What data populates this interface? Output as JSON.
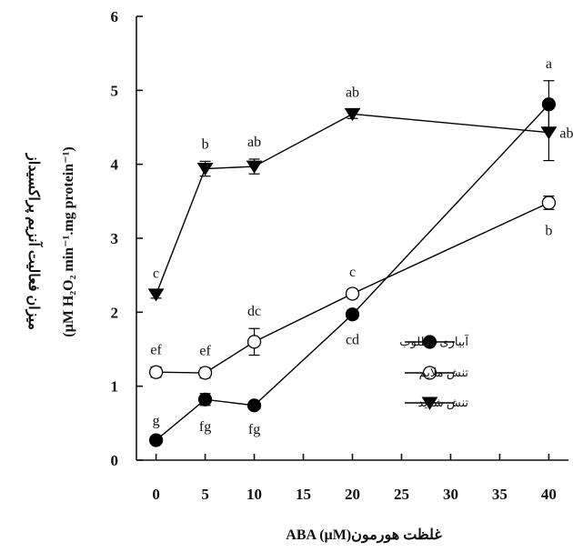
{
  "chart_data": {
    "type": "line",
    "title": "",
    "xlabel": "غلظت  هورمونABA (µM)",
    "ylabel_line1": "میزان فعالیت آنزیم پراکسیداز",
    "ylabel_line2": "(µM H₂O₂ min⁻¹.mg protein⁻¹)",
    "xlim": [
      -2,
      42
    ],
    "ylim": [
      0,
      6
    ],
    "x_ticks": [
      0,
      5,
      10,
      15,
      20,
      25,
      30,
      35,
      40
    ],
    "y_ticks": [
      0,
      1,
      2,
      3,
      4,
      5,
      6
    ],
    "legend_position": "center-right",
    "series": [
      {
        "name": "آبیاری مطلوب",
        "marker": "filled-circle",
        "points": [
          {
            "x": 0,
            "y": 0.27,
            "err": 0.03,
            "letter": "g",
            "letter_pos": "above"
          },
          {
            "x": 5,
            "y": 0.82,
            "err": 0.08,
            "letter": "fg",
            "letter_pos": "below"
          },
          {
            "x": 10,
            "y": 0.74,
            "err": 0.04,
            "letter": "fg",
            "letter_pos": "below"
          },
          {
            "x": 20,
            "y": 1.97,
            "err": 0.06,
            "letter": "cd",
            "letter_pos": "below"
          },
          {
            "x": 40,
            "y": 4.81,
            "err": 0.32,
            "letter": "a",
            "letter_pos": "above"
          }
        ]
      },
      {
        "name": "تنش ملایم",
        "marker": "open-circle",
        "points": [
          {
            "x": 0,
            "y": 1.19,
            "err": 0.07,
            "letter": "ef",
            "letter_pos": "above"
          },
          {
            "x": 5,
            "y": 1.18,
            "err": 0.07,
            "letter": "ef",
            "letter_pos": "above"
          },
          {
            "x": 10,
            "y": 1.6,
            "err": 0.18,
            "letter": "dc",
            "letter_pos": "above"
          },
          {
            "x": 20,
            "y": 2.25,
            "err": 0.06,
            "letter": "c",
            "letter_pos": "above"
          },
          {
            "x": 40,
            "y": 3.48,
            "err": 0.09,
            "letter": "b",
            "letter_pos": "below"
          }
        ]
      },
      {
        "name": "تنش شدید",
        "marker": "filled-triangle-down",
        "points": [
          {
            "x": 0,
            "y": 2.24,
            "err": 0.05,
            "letter": "c",
            "letter_pos": "above"
          },
          {
            "x": 5,
            "y": 3.94,
            "err": 0.1,
            "letter": "b",
            "letter_pos": "above"
          },
          {
            "x": 10,
            "y": 3.97,
            "err": 0.1,
            "letter": "ab",
            "letter_pos": "above"
          },
          {
            "x": 20,
            "y": 4.68,
            "err": 0.06,
            "letter": "ab",
            "letter_pos": "above"
          },
          {
            "x": 40,
            "y": 4.43,
            "err": 0.38,
            "letter": "ab",
            "letter_pos": "right"
          }
        ]
      }
    ]
  }
}
